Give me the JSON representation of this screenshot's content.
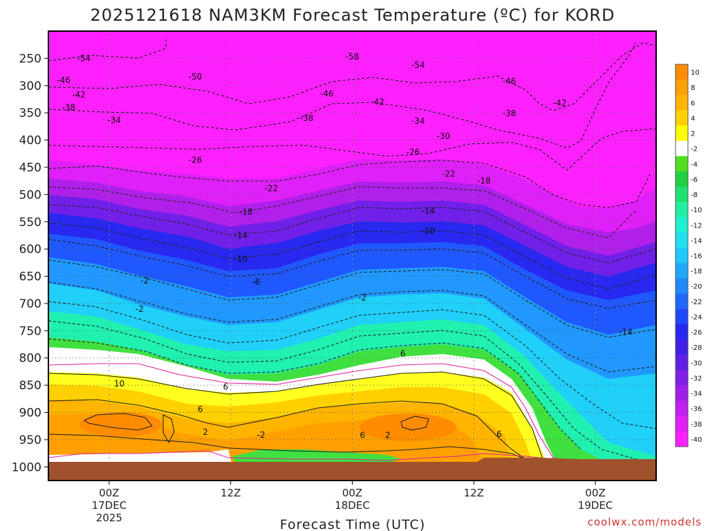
{
  "title": "2025121618 NAM3KM Forecast Temperature (ºC) for KORD",
  "credit": "coolwx.com/models",
  "chart_data": {
    "type": "heatmap",
    "xlabel": "Forecast Time (UTC)",
    "ylabel": "",
    "x_range_hours": [
      0,
      60
    ],
    "y_range_hPa": [
      200,
      1025
    ],
    "y_ticks": [
      "250",
      "300",
      "350",
      "400",
      "450",
      "500",
      "550",
      "600",
      "650",
      "700",
      "750",
      "800",
      "850",
      "900",
      "950",
      "1000"
    ],
    "x_ticks": [
      {
        "label": "00Z",
        "sub1": "17DEC",
        "sub2": "2025",
        "hour": 6
      },
      {
        "label": "12Z",
        "sub1": "",
        "sub2": "",
        "hour": 18
      },
      {
        "label": "00Z",
        "sub1": "18DEC",
        "sub2": "",
        "hour": 30
      },
      {
        "label": "12Z",
        "sub1": "",
        "sub2": "",
        "hour": 42
      },
      {
        "label": "00Z",
        "sub1": "19DEC",
        "sub2": "",
        "hour": 54
      }
    ],
    "colorbar_labels": [
      "10",
      "8",
      "6",
      "4",
      "2",
      "-2",
      "-4",
      "-6",
      "-8",
      "-10",
      "-12",
      "-14",
      "-16",
      "-18",
      "-20",
      "-22",
      "-24",
      "-26",
      "-28",
      "-30",
      "-32",
      "-34",
      "-36",
      "-38",
      "-40"
    ],
    "colorbar_colors": [
      "#ff8c00",
      "#ffa000",
      "#ffb400",
      "#ffd000",
      "#ffff00",
      "#ffffff",
      "#50e020",
      "#20d040",
      "#20e070",
      "#20f0a0",
      "#20f0d0",
      "#20e0f0",
      "#20c8ff",
      "#20a8ff",
      "#2088ff",
      "#2068ff",
      "#2048ff",
      "#2828f0",
      "#4020e8",
      "#6020e8",
      "#8020e8",
      "#a020e8",
      "#c020f0",
      "#e020f8",
      "#ff20ff"
    ],
    "contour_labels": [
      {
        "text": "-54",
        "h": 3.5,
        "p": 250
      },
      {
        "text": "-58",
        "h": 30,
        "p": 247
      },
      {
        "text": "-54",
        "h": 36.5,
        "p": 262
      },
      {
        "text": "-46",
        "h": 1.5,
        "p": 290
      },
      {
        "text": "-50",
        "h": 14.5,
        "p": 284
      },
      {
        "text": "-46",
        "h": 45.5,
        "p": 292
      },
      {
        "text": "-42",
        "h": 3,
        "p": 317
      },
      {
        "text": "-46",
        "h": 27.5,
        "p": 315
      },
      {
        "text": "-42",
        "h": 32.5,
        "p": 330
      },
      {
        "text": "-42",
        "h": 50.5,
        "p": 332
      },
      {
        "text": "-38",
        "h": 2,
        "p": 340
      },
      {
        "text": "-34",
        "h": 6.5,
        "p": 364
      },
      {
        "text": "-38",
        "h": 25.5,
        "p": 360
      },
      {
        "text": "-34",
        "h": 36.5,
        "p": 365
      },
      {
        "text": "-38",
        "h": 45.5,
        "p": 351
      },
      {
        "text": "-30",
        "h": 39,
        "p": 393
      },
      {
        "text": "-26",
        "h": 36,
        "p": 422
      },
      {
        "text": "-26",
        "h": 14.5,
        "p": 437
      },
      {
        "text": "-22",
        "h": 39.5,
        "p": 462
      },
      {
        "text": "-22",
        "h": 22,
        "p": 489
      },
      {
        "text": "-18",
        "h": 43,
        "p": 475
      },
      {
        "text": "-18",
        "h": 19.5,
        "p": 532
      },
      {
        "text": "-14",
        "h": 37.5,
        "p": 530
      },
      {
        "text": "-14",
        "h": 19,
        "p": 575
      },
      {
        "text": "-10",
        "h": 37.5,
        "p": 567
      },
      {
        "text": "-10",
        "h": 19,
        "p": 618
      },
      {
        "text": "-6",
        "h": 20.5,
        "p": 661
      },
      {
        "text": "-2",
        "h": 9.5,
        "p": 658
      },
      {
        "text": "-2",
        "h": 31,
        "p": 689
      },
      {
        "text": "-2",
        "h": 9,
        "p": 710
      },
      {
        "text": "-14",
        "h": 57,
        "p": 752
      },
      {
        "text": "6",
        "h": 35,
        "p": 792
      },
      {
        "text": "10",
        "h": 7,
        "p": 847
      },
      {
        "text": "6",
        "h": 17.5,
        "p": 853
      },
      {
        "text": "6",
        "h": 15,
        "p": 894
      },
      {
        "text": "2",
        "h": 15.5,
        "p": 936
      },
      {
        "text": "-2",
        "h": 21,
        "p": 941
      },
      {
        "text": "6",
        "h": 31,
        "p": 942
      },
      {
        "text": "2",
        "h": 33.5,
        "p": 942
      },
      {
        "text": "6",
        "h": 44.5,
        "p": 940
      }
    ]
  }
}
